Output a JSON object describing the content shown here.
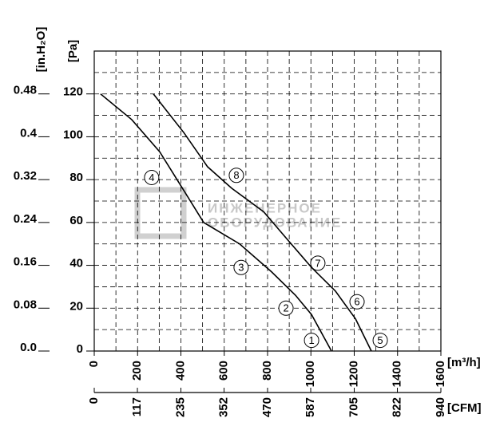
{
  "chart_data": {
    "type": "line",
    "xlabel": "[m³/h]",
    "ylabel": "[Pa]",
    "y2label": "[in.H₂O]",
    "x2label": "[CFM]",
    "watermark": [
      "ИНЖЕНЕРНОЕ",
      "ОБОРУДОВАНИЕ"
    ],
    "xlim": [
      0,
      1600
    ],
    "xticks": [
      0,
      200,
      400,
      600,
      800,
      1000,
      1200,
      1400,
      1600
    ],
    "ylim": [
      0,
      140
    ],
    "yticks": [
      0,
      20,
      40,
      60,
      80,
      100,
      120
    ],
    "y2lim": [
      0,
      0.56
    ],
    "y2ticks": [
      {
        "value": 0,
        "label": "0.0"
      },
      0.08,
      0.16,
      0.24,
      0.32,
      0.4,
      0.48
    ],
    "x2lim": [
      0,
      940
    ],
    "x2ticks": [
      0,
      117,
      235,
      352,
      470,
      587,
      705,
      822,
      940
    ],
    "xgrid": [
      100,
      300,
      500,
      700,
      900,
      1100,
      1300,
      1500
    ],
    "ygrid": [
      10,
      30,
      50,
      70,
      90,
      110,
      130,
      140
    ],
    "series": [
      {
        "color": "#000000",
        "x": [
          29,
          173,
          302,
          413,
          505,
          671,
          818,
          929,
          1003,
          1095
        ],
        "values": [
          120,
          108,
          93,
          75,
          60,
          50,
          37,
          26,
          17,
          0
        ]
      },
      {
        "color": "#000000",
        "x": [
          273,
          413,
          523,
          634,
          782,
          892,
          1003,
          1113,
          1206,
          1279
        ],
        "values": [
          120,
          102,
          86,
          76,
          65,
          52,
          39,
          28,
          15,
          0
        ]
      }
    ],
    "annotations": [
      {
        "text": "4",
        "x": 265,
        "y": 81
      },
      {
        "text": "3",
        "x": 678,
        "y": 39
      },
      {
        "text": "2",
        "x": 885,
        "y": 20
      },
      {
        "text": "1",
        "x": 1003,
        "y": 5
      },
      {
        "text": "8",
        "x": 656,
        "y": 82
      },
      {
        "text": "7",
        "x": 1032,
        "y": 41
      },
      {
        "text": "6",
        "x": 1213,
        "y": 23
      },
      {
        "text": "5",
        "x": 1320,
        "y": 5
      }
    ]
  }
}
